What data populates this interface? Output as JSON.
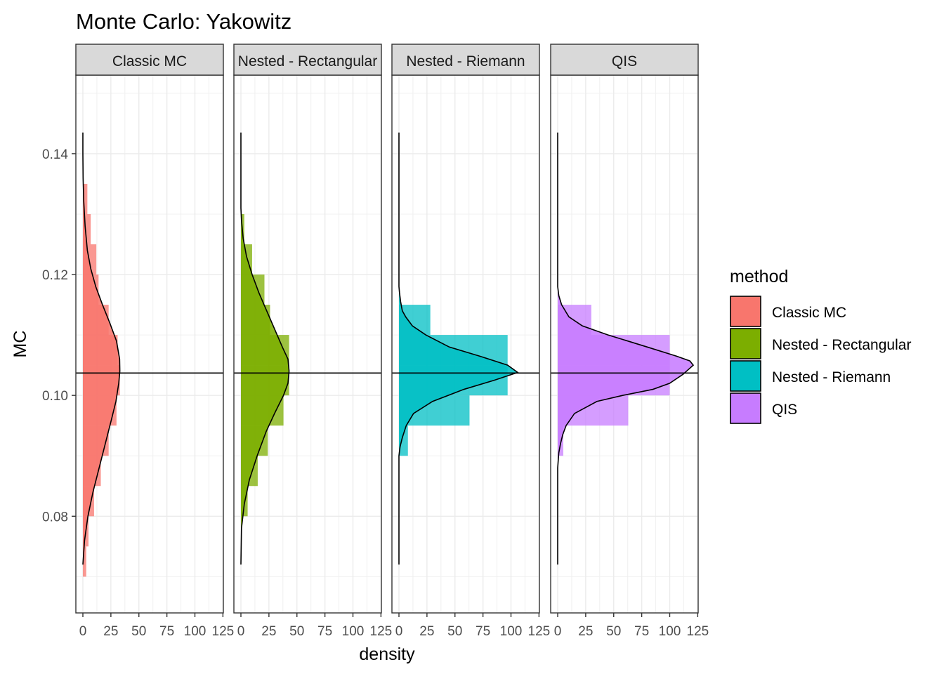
{
  "chart_data": {
    "type": "histogram-density",
    "title": "Monte Carlo: Yakowitz",
    "xlabel": "density",
    "ylabel": "MC",
    "orientation": "horizontal",
    "xlim": [
      0,
      125
    ],
    "ylim": [
      0.064,
      0.153
    ],
    "x_ticks": [
      0,
      25,
      50,
      75,
      100,
      125
    ],
    "x_tick_labels": [
      "0",
      "25",
      "50",
      "75",
      "100",
      "125"
    ],
    "y_ticks": [
      0.08,
      0.1,
      0.12,
      0.14
    ],
    "y_tick_labels": [
      "0.08",
      "0.10",
      "0.12",
      "0.14"
    ],
    "reference_line_y": 0.1037,
    "grid": true,
    "legend": {
      "title": "method",
      "position": "right",
      "entries": [
        "Classic MC",
        "Nested - Rectangular",
        "Nested - Riemann",
        "QIS"
      ]
    },
    "facets": [
      {
        "label": "Classic MC",
        "color": "#F8766D",
        "bin_width": 0.005,
        "bins": [
          {
            "y": 0.0725,
            "count": 3
          },
          {
            "y": 0.0775,
            "count": 5
          },
          {
            "y": 0.0825,
            "count": 10
          },
          {
            "y": 0.0875,
            "count": 16
          },
          {
            "y": 0.0925,
            "count": 23
          },
          {
            "y": 0.0975,
            "count": 30
          },
          {
            "y": 0.1025,
            "count": 33
          },
          {
            "y": 0.1075,
            "count": 31
          },
          {
            "y": 0.1125,
            "count": 23
          },
          {
            "y": 0.1175,
            "count": 14
          },
          {
            "y": 0.1225,
            "count": 12
          },
          {
            "y": 0.1275,
            "count": 7
          },
          {
            "y": 0.1325,
            "count": 4
          }
        ],
        "density": [
          [
            0.072,
            0
          ],
          [
            0.076,
            1.5
          ],
          [
            0.08,
            4.5
          ],
          [
            0.084,
            9
          ],
          [
            0.088,
            14.5
          ],
          [
            0.092,
            20
          ],
          [
            0.096,
            25.5
          ],
          [
            0.099,
            29.5
          ],
          [
            0.102,
            32
          ],
          [
            0.104,
            33
          ],
          [
            0.106,
            32.8
          ],
          [
            0.109,
            30
          ],
          [
            0.112,
            24
          ],
          [
            0.115,
            17.5
          ],
          [
            0.118,
            11.5
          ],
          [
            0.121,
            7
          ],
          [
            0.124,
            4
          ],
          [
            0.128,
            2
          ],
          [
            0.132,
            0.8
          ],
          [
            0.136,
            0.2
          ],
          [
            0.14,
            0
          ],
          [
            0.1435,
            0
          ]
        ]
      },
      {
        "label": "Nested - Rectangular",
        "color": "#7CAE00",
        "bin_width": 0.005,
        "bins": [
          {
            "y": 0.0825,
            "count": 6
          },
          {
            "y": 0.0875,
            "count": 15
          },
          {
            "y": 0.0925,
            "count": 24
          },
          {
            "y": 0.0975,
            "count": 38
          },
          {
            "y": 0.1025,
            "count": 43
          },
          {
            "y": 0.1075,
            "count": 43
          },
          {
            "y": 0.1125,
            "count": 26
          },
          {
            "y": 0.1175,
            "count": 21
          },
          {
            "y": 0.1225,
            "count": 10
          },
          {
            "y": 0.1275,
            "count": 3
          }
        ],
        "density": [
          [
            0.072,
            0
          ],
          [
            0.078,
            0.5
          ],
          [
            0.082,
            3
          ],
          [
            0.086,
            7.5
          ],
          [
            0.09,
            14.5
          ],
          [
            0.094,
            22.5
          ],
          [
            0.097,
            30
          ],
          [
            0.1,
            38
          ],
          [
            0.102,
            42
          ],
          [
            0.104,
            43
          ],
          [
            0.106,
            42
          ],
          [
            0.108,
            37
          ],
          [
            0.111,
            30
          ],
          [
            0.114,
            23
          ],
          [
            0.117,
            16
          ],
          [
            0.12,
            10
          ],
          [
            0.123,
            5
          ],
          [
            0.126,
            2
          ],
          [
            0.129,
            0.5
          ],
          [
            0.131,
            0
          ],
          [
            0.1435,
            0
          ]
        ]
      },
      {
        "label": "Nested - Riemann",
        "color": "#00BFC4",
        "bin_width": 0.005,
        "bins": [
          {
            "y": 0.0925,
            "count": 8
          },
          {
            "y": 0.0975,
            "count": 63
          },
          {
            "y": 0.1025,
            "count": 97
          },
          {
            "y": 0.1075,
            "count": 97
          },
          {
            "y": 0.1125,
            "count": 28
          }
        ],
        "density": [
          [
            0.072,
            0
          ],
          [
            0.09,
            0
          ],
          [
            0.0915,
            1
          ],
          [
            0.093,
            3
          ],
          [
            0.095,
            6.5
          ],
          [
            0.097,
            13
          ],
          [
            0.099,
            30
          ],
          [
            0.101,
            58
          ],
          [
            0.1025,
            85
          ],
          [
            0.1038,
            106
          ],
          [
            0.105,
            97
          ],
          [
            0.1065,
            72
          ],
          [
            0.108,
            45
          ],
          [
            0.11,
            24
          ],
          [
            0.1115,
            12
          ],
          [
            0.113,
            6
          ],
          [
            0.114,
            3
          ],
          [
            0.1155,
            1.5
          ],
          [
            0.117,
            0.5
          ],
          [
            0.118,
            0
          ],
          [
            0.1435,
            0
          ]
        ]
      },
      {
        "label": "QIS",
        "color": "#C77CFF",
        "bin_width": 0.005,
        "bins": [
          {
            "y": 0.0925,
            "count": 5
          },
          {
            "y": 0.0975,
            "count": 63
          },
          {
            "y": 0.1025,
            "count": 100
          },
          {
            "y": 0.1075,
            "count": 100
          },
          {
            "y": 0.1125,
            "count": 30
          }
        ],
        "density": [
          [
            0.072,
            0
          ],
          [
            0.088,
            0
          ],
          [
            0.0905,
            1
          ],
          [
            0.092,
            2.5
          ],
          [
            0.0935,
            4.5
          ],
          [
            0.095,
            7.5
          ],
          [
            0.097,
            15
          ],
          [
            0.099,
            35
          ],
          [
            0.1,
            58
          ],
          [
            0.101,
            85
          ],
          [
            0.102,
            100
          ],
          [
            0.1035,
            112
          ],
          [
            0.1045,
            118
          ],
          [
            0.105,
            121
          ],
          [
            0.1057,
            118
          ],
          [
            0.1065,
            106
          ],
          [
            0.108,
            80
          ],
          [
            0.11,
            45
          ],
          [
            0.1115,
            22
          ],
          [
            0.113,
            10
          ],
          [
            0.115,
            3.5
          ],
          [
            0.1165,
            1
          ],
          [
            0.118,
            0
          ],
          [
            0.1435,
            0
          ]
        ]
      }
    ]
  }
}
